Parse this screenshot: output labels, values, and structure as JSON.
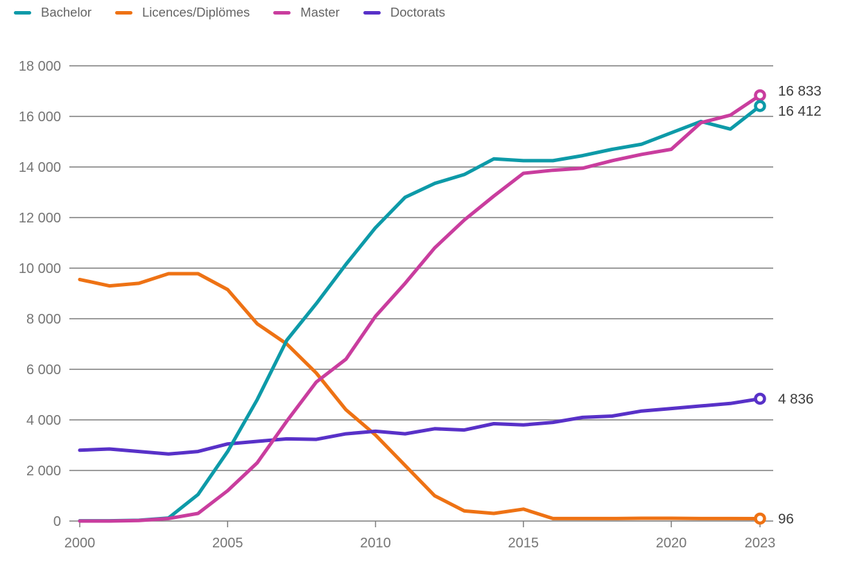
{
  "chart_data": {
    "type": "line",
    "x": [
      2000,
      2001,
      2002,
      2003,
      2004,
      2005,
      2006,
      2007,
      2008,
      2009,
      2010,
      2011,
      2012,
      2013,
      2014,
      2015,
      2016,
      2017,
      2018,
      2019,
      2020,
      2021,
      2022,
      2023
    ],
    "series": [
      {
        "name": "Bachelor",
        "color": "#0d9aa8",
        "values": [
          10,
          10,
          30,
          120,
          1050,
          2750,
          4800,
          7150,
          8600,
          10150,
          11600,
          12800,
          13350,
          13700,
          14320,
          14250,
          14250,
          14450,
          14700,
          14900,
          15350,
          15800,
          15500,
          16412
        ],
        "end_label": "16 412"
      },
      {
        "name": "Licences/Diplömes",
        "color": "#ee7214",
        "values": [
          9550,
          9300,
          9400,
          9780,
          9780,
          9150,
          7800,
          7000,
          5850,
          4400,
          3400,
          2200,
          1000,
          400,
          300,
          470,
          100,
          100,
          100,
          110,
          110,
          100,
          100,
          96
        ],
        "end_label": "96"
      },
      {
        "name": "Master",
        "color": "#c93d9e",
        "values": [
          0,
          0,
          20,
          100,
          300,
          1200,
          2300,
          3950,
          5500,
          6400,
          8100,
          9400,
          10800,
          11900,
          12850,
          13750,
          13870,
          13950,
          14250,
          14500,
          14700,
          15750,
          16050,
          16833
        ],
        "end_label": "16 833"
      },
      {
        "name": "Doctorats",
        "color": "#5831c8",
        "values": [
          2800,
          2850,
          2750,
          2650,
          2750,
          3050,
          3150,
          3250,
          3230,
          3450,
          3550,
          3450,
          3650,
          3600,
          3850,
          3800,
          3900,
          4100,
          4150,
          4350,
          4450,
          4550,
          4650,
          4836
        ],
        "end_label": "4 836"
      }
    ],
    "title": "",
    "xlabel": "",
    "ylabel": "",
    "ylim": [
      0,
      18000
    ],
    "yticks": [
      0,
      2000,
      4000,
      6000,
      8000,
      10000,
      12000,
      14000,
      16000,
      18000
    ],
    "ytick_labels": [
      "0",
      "2 000",
      "4 000",
      "6 000",
      "8 000",
      "10 000",
      "12 000",
      "14 000",
      "16 000",
      "18 000"
    ],
    "xticks": [
      2000,
      2005,
      2010,
      2015,
      2020,
      2023
    ],
    "xtick_labels": [
      "2000",
      "2005",
      "2010",
      "2015",
      "2020",
      "2023"
    ],
    "grid": "horizontal",
    "legend_position": "top-left"
  },
  "colors": {
    "gridline": "#7d7d7d",
    "axis_text": "#757575",
    "end_label_text": "#3c3c3c",
    "background": "#ffffff"
  }
}
